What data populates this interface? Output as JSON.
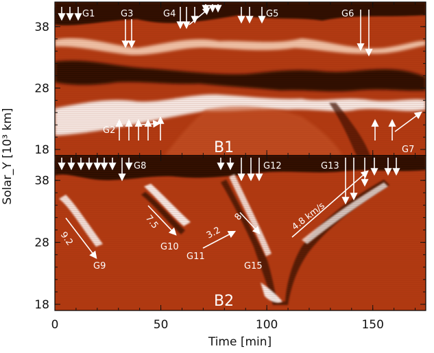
{
  "x_axis": {
    "title": "Time [min]",
    "ticks": [
      "0",
      "50",
      "100",
      "150"
    ],
    "tick_values": [
      0,
      50,
      100,
      150
    ],
    "range": [
      0,
      175
    ]
  },
  "y_axis": {
    "title": "Solar_Y [10³ km]",
    "ticks": [
      "38",
      "28",
      "18"
    ],
    "tick_values": [
      38,
      28,
      18
    ],
    "range": [
      17,
      42
    ]
  },
  "panels": [
    {
      "name": "B1",
      "labels": [
        "G1",
        "G2",
        "G3",
        "G4",
        "G5",
        "G6",
        "G7"
      ]
    },
    {
      "name": "B2",
      "labels": [
        "G8",
        "G9",
        "G10",
        "G11",
        "G12",
        "G13",
        "G15"
      ],
      "speeds": [
        "9.2",
        "7.5",
        "3.2",
        "8",
        "4.8 km/s"
      ]
    }
  ],
  "colors": {
    "background": "#b23a12",
    "dark_band": "#2a0a00",
    "bright": "#ffffff",
    "annotation": "#ffffff"
  }
}
